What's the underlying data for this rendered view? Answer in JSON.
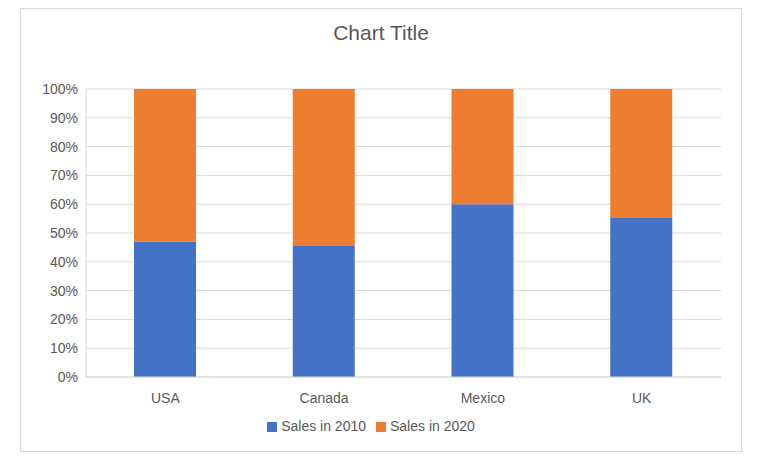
{
  "chart_data": {
    "type": "bar",
    "title": "Chart Title",
    "categories": [
      "USA",
      "Canada",
      "Mexico",
      "UK"
    ],
    "series": [
      {
        "name": "Sales in 2010",
        "color": "#4472c4",
        "values": [
          47,
          45.5,
          60,
          55.5
        ]
      },
      {
        "name": "Sales in 2020",
        "color": "#ed7d31",
        "values": [
          53,
          54.5,
          40,
          44.5
        ]
      }
    ],
    "stacked": true,
    "ylim": [
      0,
      100
    ],
    "yticks": [
      {
        "value": 0,
        "label": "0%"
      },
      {
        "value": 10,
        "label": "10%"
      },
      {
        "value": 20,
        "label": "20%"
      },
      {
        "value": 30,
        "label": "30%"
      },
      {
        "value": 40,
        "label": "40%"
      },
      {
        "value": 50,
        "label": "50%"
      },
      {
        "value": 60,
        "label": "60%"
      },
      {
        "value": 70,
        "label": "70%"
      },
      {
        "value": 80,
        "label": "80%"
      },
      {
        "value": 90,
        "label": "90%"
      },
      {
        "value": 100,
        "label": "100%"
      }
    ],
    "grid": true,
    "legend": "bottom"
  }
}
